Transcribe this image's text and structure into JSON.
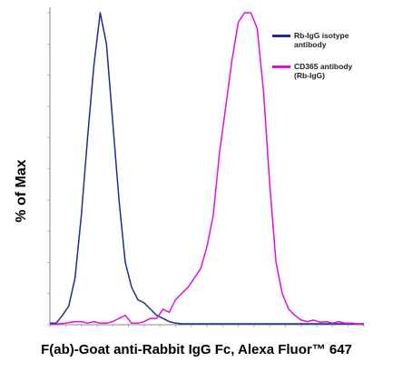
{
  "chart_data": {
    "type": "line",
    "title": "",
    "xlabel": "F(ab)-Goat anti-Rabbit IgG Fc, Alexa Fluor™ 647",
    "ylabel": "% of Max",
    "xlim": [
      0,
      100
    ],
    "ylim": [
      0,
      100
    ],
    "legend_position": "top-right",
    "series": [
      {
        "name": "Rb-IgG isotype antibody",
        "color": "#1f2d91",
        "x": [
          0,
          2,
          4,
          6,
          8,
          10,
          12,
          14,
          16,
          18,
          20,
          22,
          24,
          26,
          28,
          30,
          32,
          34,
          36,
          38,
          40,
          42,
          44,
          46,
          48,
          50,
          55,
          60,
          65,
          70,
          75,
          80,
          85,
          90,
          95,
          100
        ],
        "y": [
          0.5,
          0.5,
          3,
          6,
          15,
          35,
          60,
          83,
          100,
          90,
          65,
          40,
          20,
          12,
          8,
          7,
          5,
          3,
          2,
          1,
          0.5,
          0.3,
          0.3,
          0.3,
          0.3,
          0.3,
          0.3,
          0.3,
          0.3,
          0.3,
          0.3,
          0.3,
          0.3,
          0.3,
          0.3,
          0.3
        ]
      },
      {
        "name": "CD365 antibody (Rb-IgG)",
        "color": "#e010e0",
        "x": [
          0,
          5,
          8,
          10,
          12,
          14,
          16,
          18,
          20,
          22,
          24,
          26,
          28,
          30,
          32,
          34,
          36,
          38,
          40,
          42,
          44,
          46,
          48,
          50,
          52,
          54,
          56,
          58,
          60,
          62,
          64,
          66,
          68,
          70,
          72,
          74,
          76,
          78,
          80,
          82,
          84,
          86,
          88,
          90,
          92,
          94,
          96,
          98,
          100
        ],
        "y": [
          0,
          0.5,
          1,
          1,
          0.5,
          1,
          0.5,
          0.5,
          1,
          2,
          3,
          0.5,
          0.5,
          1,
          2,
          2,
          5,
          4,
          8,
          10,
          12,
          15,
          18,
          25,
          35,
          55,
          70,
          85,
          97,
          100,
          100,
          95,
          75,
          45,
          20,
          10,
          5,
          3,
          1.5,
          1,
          1.5,
          0.8,
          1,
          0.5,
          1,
          0.5,
          0.5,
          0.3,
          0
        ]
      }
    ]
  }
}
